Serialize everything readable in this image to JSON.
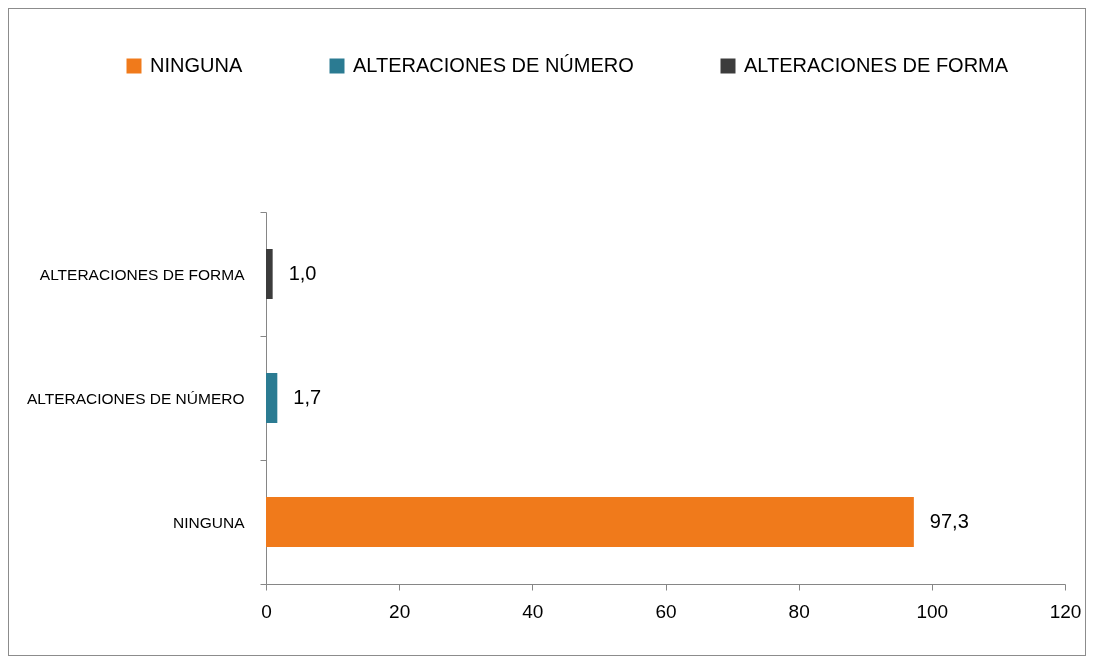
{
  "chart_data": {
    "type": "bar",
    "orientation": "horizontal",
    "stacked": true,
    "categories": [
      "ALTERACIONES DE  FORMA",
      "ALTERACIONES DE NÚMERO",
      "NINGUNA"
    ],
    "series": [
      {
        "name": "NINGUNA",
        "color": "#f07a1b",
        "values": [
          null,
          null,
          97.3
        ],
        "value_labels": [
          null,
          null,
          "97,3"
        ]
      },
      {
        "name": "ALTERACIONES DE NÚMERO",
        "color": "#2b7b92",
        "values": [
          null,
          1.7,
          null
        ],
        "value_labels": [
          null,
          "1,7",
          null
        ]
      },
      {
        "name": "ALTERACIONES DE  FORMA",
        "color": "#3c3c3c",
        "values": [
          1.0,
          null,
          null
        ],
        "value_labels": [
          "1,0",
          null,
          null
        ]
      }
    ],
    "xlim": [
      0,
      120
    ],
    "xticks": [
      0,
      20,
      40,
      60,
      80,
      100,
      120
    ],
    "legend": "top"
  }
}
